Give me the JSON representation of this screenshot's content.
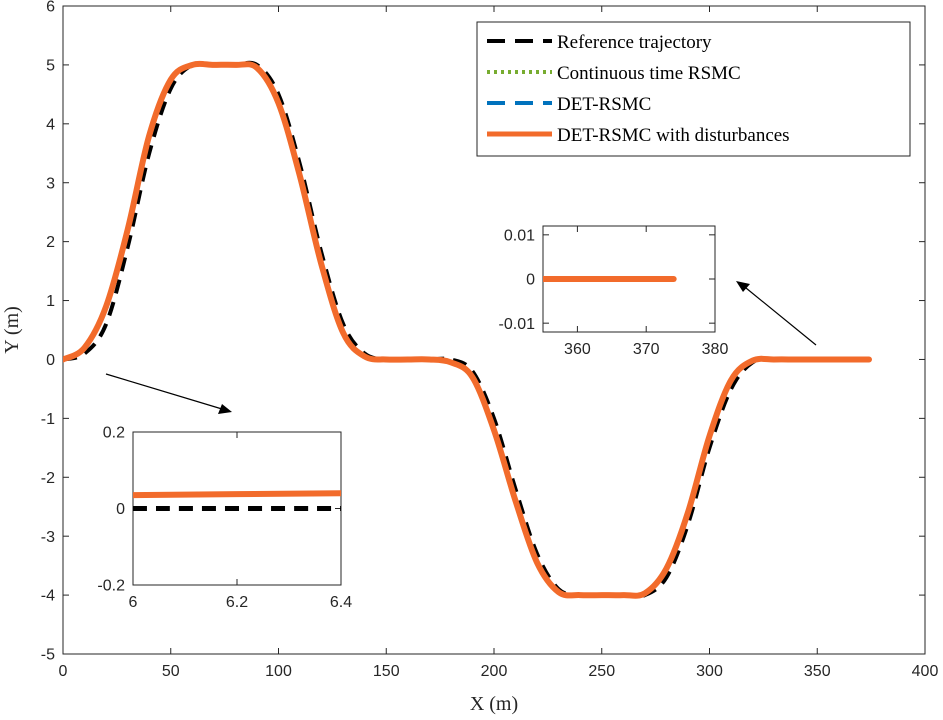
{
  "chart_data": {
    "type": "line",
    "xlabel": "X (m)",
    "ylabel": "Y (m)",
    "xlim": [
      0,
      400
    ],
    "ylim": [
      -5,
      6
    ],
    "xticks": [
      "0",
      "50",
      "100",
      "150",
      "200",
      "250",
      "300",
      "350",
      "400"
    ],
    "yticks": [
      "-5",
      "-4",
      "-3",
      "-2",
      "-1",
      "0",
      "1",
      "2",
      "3",
      "4",
      "5",
      "6"
    ],
    "series": [
      {
        "name": "Reference trajectory",
        "color": "#000000",
        "style": "dashed",
        "x": [
          0,
          10,
          20,
          30,
          40,
          50,
          60,
          70,
          80,
          90,
          100,
          110,
          120,
          130,
          140,
          150,
          160,
          170,
          180,
          190,
          200,
          210,
          220,
          230,
          240,
          250,
          260,
          270,
          280,
          290,
          300,
          310,
          320,
          330,
          340,
          350,
          360,
          374
        ],
        "y": [
          0,
          0.1,
          0.6,
          1.9,
          3.5,
          4.6,
          5.0,
          5.0,
          5.0,
          5.0,
          4.5,
          3.3,
          1.8,
          0.6,
          0.1,
          0,
          0,
          0,
          0,
          -0.2,
          -1.0,
          -2.2,
          -3.3,
          -3.9,
          -4.0,
          -4.0,
          -4.0,
          -4.0,
          -3.7,
          -2.8,
          -1.5,
          -0.5,
          -0.05,
          0,
          0,
          0,
          0,
          0
        ]
      },
      {
        "name": "Continuous time RSMC",
        "color": "#77ac30",
        "style": "dotted",
        "x": [
          0,
          10,
          20,
          30,
          40,
          50,
          60,
          70,
          80,
          90,
          100,
          110,
          120,
          130,
          140,
          150,
          160,
          170,
          180,
          190,
          200,
          210,
          220,
          230,
          240,
          250,
          260,
          270,
          280,
          290,
          300,
          310,
          320,
          330,
          340,
          350,
          360,
          374
        ],
        "y": [
          0,
          0.2,
          0.9,
          2.2,
          3.8,
          4.75,
          5.0,
          5.0,
          5.0,
          4.95,
          4.35,
          3.1,
          1.6,
          0.45,
          0.05,
          0,
          0,
          0,
          -0.05,
          -0.3,
          -1.2,
          -2.4,
          -3.45,
          -3.95,
          -4.0,
          -4.0,
          -4.0,
          -3.97,
          -3.55,
          -2.6,
          -1.3,
          -0.35,
          -0.02,
          0,
          0,
          0,
          0,
          0
        ]
      },
      {
        "name": "DET-RSMC",
        "color": "#0072bd",
        "style": "dashed",
        "x": [
          0,
          10,
          20,
          30,
          40,
          50,
          60,
          70,
          80,
          90,
          100,
          110,
          120,
          130,
          140,
          150,
          160,
          170,
          180,
          190,
          200,
          210,
          220,
          230,
          240,
          250,
          260,
          270,
          280,
          290,
          300,
          310,
          320,
          330,
          340,
          350,
          360,
          374
        ],
        "y": [
          0,
          0.2,
          0.9,
          2.2,
          3.8,
          4.75,
          5.0,
          5.0,
          5.0,
          4.95,
          4.35,
          3.1,
          1.6,
          0.45,
          0.05,
          0,
          0,
          0,
          -0.05,
          -0.3,
          -1.2,
          -2.4,
          -3.45,
          -3.95,
          -4.0,
          -4.0,
          -4.0,
          -3.97,
          -3.55,
          -2.6,
          -1.3,
          -0.35,
          -0.02,
          0,
          0,
          0,
          0,
          0
        ]
      },
      {
        "name": "DET-RSMC with disturbances",
        "color": "#f26b2b",
        "style": "solid",
        "x": [
          0,
          10,
          20,
          30,
          40,
          50,
          60,
          70,
          80,
          90,
          100,
          110,
          120,
          130,
          140,
          150,
          160,
          170,
          180,
          190,
          200,
          210,
          220,
          230,
          240,
          250,
          260,
          270,
          280,
          290,
          300,
          310,
          320,
          330,
          340,
          350,
          360,
          374
        ],
        "y": [
          0,
          0.2,
          0.9,
          2.2,
          3.8,
          4.75,
          5.0,
          5.0,
          5.0,
          4.95,
          4.35,
          3.1,
          1.6,
          0.45,
          0.05,
          0,
          0,
          0,
          -0.05,
          -0.3,
          -1.2,
          -2.4,
          -3.45,
          -3.95,
          -4.0,
          -4.0,
          -4.0,
          -3.97,
          -3.55,
          -2.6,
          -1.3,
          -0.35,
          -0.02,
          0,
          0,
          0,
          0,
          0
        ]
      }
    ],
    "legend_position": "top-right",
    "insets": [
      {
        "name": "inset-start",
        "xlim": [
          6,
          6.4
        ],
        "ylim": [
          -0.2,
          0.2
        ],
        "xticks": [
          "6",
          "6.2",
          "6.4"
        ],
        "yticks": [
          "-0.2",
          "0",
          "0.2"
        ],
        "series": [
          {
            "name": "Reference trajectory",
            "x": [
              6,
              6.4
            ],
            "y": [
              0,
              0
            ],
            "color": "#000000",
            "style": "dashed"
          },
          {
            "name": "DET-RSMC with disturbances",
            "x": [
              6,
              6.4
            ],
            "y": [
              0.035,
              0.04
            ],
            "color": "#f26b2b",
            "style": "solid"
          }
        ]
      },
      {
        "name": "inset-end",
        "xlim": [
          355,
          380
        ],
        "ylim": [
          -0.012,
          0.012
        ],
        "xticks": [
          "360",
          "370",
          "380"
        ],
        "yticks": [
          "-0.01",
          "0",
          "0.01"
        ],
        "series": [
          {
            "name": "Reference trajectory",
            "x": [
              355,
              374
            ],
            "y": [
              0,
              0
            ],
            "color": "#000000",
            "style": "dashed"
          },
          {
            "name": "DET-RSMC with disturbances",
            "x": [
              355,
              374
            ],
            "y": [
              0,
              0
            ],
            "color": "#f26b2b",
            "style": "solid"
          }
        ]
      }
    ]
  }
}
